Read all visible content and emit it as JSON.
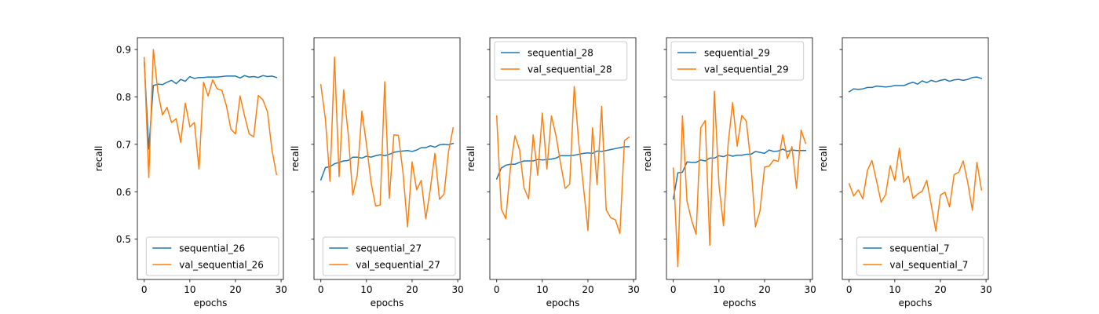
{
  "chart_data": [
    {
      "type": "line",
      "xlabel": "epochs",
      "ylabel": "recall",
      "xlim": [
        -1.5,
        30.5
      ],
      "ylim": [
        0.415,
        0.925
      ],
      "xticks": [
        0,
        10,
        20,
        30
      ],
      "yticks": [
        0.5,
        0.6,
        0.7,
        0.8,
        0.9
      ],
      "show_ytick_labels": true,
      "legend": "lower-right",
      "series": [
        {
          "name": "sequential_26",
          "color": "#1f77b4",
          "x": [
            0,
            1,
            2,
            3,
            4,
            5,
            6,
            7,
            8,
            9,
            10,
            11,
            12,
            13,
            14,
            15,
            16,
            17,
            18,
            19,
            20,
            21,
            22,
            23,
            24,
            25,
            26,
            27,
            28,
            29
          ],
          "values": [
            0.875,
            0.69,
            0.824,
            0.827,
            0.826,
            0.831,
            0.835,
            0.828,
            0.837,
            0.833,
            0.843,
            0.839,
            0.841,
            0.841,
            0.842,
            0.842,
            0.842,
            0.843,
            0.844,
            0.844,
            0.844,
            0.84,
            0.845,
            0.842,
            0.843,
            0.841,
            0.845,
            0.843,
            0.844,
            0.841
          ]
        },
        {
          "name": "val_sequential_26",
          "color": "#ff7f0e",
          "x": [
            0,
            1,
            2,
            3,
            4,
            5,
            6,
            7,
            8,
            9,
            10,
            11,
            12,
            13,
            14,
            15,
            16,
            17,
            18,
            19,
            20,
            21,
            22,
            23,
            24,
            25,
            26,
            27,
            28,
            29
          ],
          "values": [
            0.883,
            0.63,
            0.9,
            0.81,
            0.762,
            0.778,
            0.746,
            0.754,
            0.704,
            0.787,
            0.737,
            0.746,
            0.648,
            0.831,
            0.802,
            0.836,
            0.817,
            0.814,
            0.782,
            0.732,
            0.722,
            0.802,
            0.76,
            0.722,
            0.716,
            0.803,
            0.794,
            0.769,
            0.688,
            0.636
          ]
        }
      ]
    },
    {
      "type": "line",
      "xlabel": "epochs",
      "ylabel": "recall",
      "xlim": [
        -1.5,
        30.5
      ],
      "ylim": [
        0.415,
        0.925
      ],
      "xticks": [
        0,
        10,
        20,
        30
      ],
      "yticks": [
        0.5,
        0.6,
        0.7,
        0.8,
        0.9
      ],
      "show_ytick_labels": false,
      "legend": "lower-right",
      "series": [
        {
          "name": "sequential_27",
          "color": "#1f77b4",
          "x": [
            0,
            1,
            2,
            3,
            4,
            5,
            6,
            7,
            8,
            9,
            10,
            11,
            12,
            13,
            14,
            15,
            16,
            17,
            18,
            19,
            20,
            21,
            22,
            23,
            24,
            25,
            26,
            27,
            28,
            29
          ],
          "values": [
            0.625,
            0.651,
            0.653,
            0.659,
            0.662,
            0.665,
            0.666,
            0.673,
            0.673,
            0.671,
            0.675,
            0.673,
            0.676,
            0.678,
            0.676,
            0.679,
            0.683,
            0.685,
            0.686,
            0.687,
            0.685,
            0.688,
            0.693,
            0.693,
            0.697,
            0.694,
            0.699,
            0.7,
            0.699,
            0.702
          ]
        },
        {
          "name": "val_sequential_27",
          "color": "#ff7f0e",
          "x": [
            0,
            1,
            2,
            3,
            4,
            5,
            6,
            7,
            8,
            9,
            10,
            11,
            12,
            13,
            14,
            15,
            16,
            17,
            18,
            19,
            20,
            21,
            22,
            23,
            24,
            25,
            26,
            27,
            28,
            29
          ],
          "values": [
            0.826,
            0.753,
            0.622,
            0.884,
            0.632,
            0.815,
            0.721,
            0.593,
            0.636,
            0.77,
            0.7,
            0.62,
            0.57,
            0.572,
            0.832,
            0.586,
            0.72,
            0.719,
            0.641,
            0.526,
            0.663,
            0.604,
            0.624,
            0.543,
            0.606,
            0.681,
            0.584,
            0.595,
            0.686,
            0.735
          ]
        }
      ]
    },
    {
      "type": "line",
      "xlabel": "epochs",
      "ylabel": "recall",
      "xlim": [
        -1.5,
        30.5
      ],
      "ylim": [
        0.415,
        0.925
      ],
      "xticks": [
        0,
        10,
        20,
        30
      ],
      "yticks": [
        0.5,
        0.6,
        0.7,
        0.8,
        0.9
      ],
      "show_ytick_labels": false,
      "legend": "upper-left",
      "series": [
        {
          "name": "sequential_28",
          "color": "#1f77b4",
          "x": [
            0,
            1,
            2,
            3,
            4,
            5,
            6,
            7,
            8,
            9,
            10,
            11,
            12,
            13,
            14,
            15,
            16,
            17,
            18,
            19,
            20,
            21,
            22,
            23,
            24,
            25,
            26,
            27,
            28,
            29
          ],
          "values": [
            0.627,
            0.65,
            0.656,
            0.658,
            0.658,
            0.662,
            0.665,
            0.665,
            0.665,
            0.668,
            0.667,
            0.668,
            0.669,
            0.671,
            0.676,
            0.676,
            0.676,
            0.677,
            0.679,
            0.681,
            0.682,
            0.681,
            0.686,
            0.685,
            0.687,
            0.689,
            0.691,
            0.693,
            0.695,
            0.695
          ]
        },
        {
          "name": "val_sequential_28",
          "color": "#ff7f0e",
          "x": [
            0,
            1,
            2,
            3,
            4,
            5,
            6,
            7,
            8,
            9,
            10,
            11,
            12,
            13,
            14,
            15,
            16,
            17,
            18,
            19,
            20,
            21,
            22,
            23,
            24,
            25,
            26,
            27,
            28,
            29
          ],
          "values": [
            0.76,
            0.564,
            0.543,
            0.649,
            0.718,
            0.689,
            0.608,
            0.585,
            0.72,
            0.635,
            0.766,
            0.648,
            0.76,
            0.718,
            0.66,
            0.607,
            0.616,
            0.822,
            0.702,
            0.612,
            0.518,
            0.735,
            0.615,
            0.78,
            0.562,
            0.545,
            0.541,
            0.512,
            0.708,
            0.715
          ]
        }
      ]
    },
    {
      "type": "line",
      "xlabel": "epochs",
      "ylabel": "recall",
      "xlim": [
        -1.5,
        30.5
      ],
      "ylim": [
        0.415,
        0.925
      ],
      "xticks": [
        0,
        10,
        20,
        30
      ],
      "yticks": [
        0.5,
        0.6,
        0.7,
        0.8,
        0.9
      ],
      "show_ytick_labels": false,
      "legend": "upper-left",
      "series": [
        {
          "name": "sequential_29",
          "color": "#1f77b4",
          "x": [
            0,
            1,
            2,
            3,
            4,
            5,
            6,
            7,
            8,
            9,
            10,
            11,
            12,
            13,
            14,
            15,
            16,
            17,
            18,
            19,
            20,
            21,
            22,
            23,
            24,
            25,
            26,
            27,
            28,
            29
          ],
          "values": [
            0.585,
            0.64,
            0.641,
            0.663,
            0.662,
            0.662,
            0.667,
            0.665,
            0.671,
            0.671,
            0.676,
            0.674,
            0.678,
            0.675,
            0.677,
            0.677,
            0.679,
            0.679,
            0.685,
            0.683,
            0.681,
            0.688,
            0.685,
            0.686,
            0.69,
            0.685,
            0.688,
            0.687,
            0.687,
            0.687
          ]
        },
        {
          "name": "val_sequential_29",
          "color": "#ff7f0e",
          "x": [
            0,
            1,
            2,
            3,
            4,
            5,
            6,
            7,
            8,
            9,
            10,
            11,
            12,
            13,
            14,
            15,
            16,
            17,
            18,
            19,
            20,
            21,
            22,
            23,
            24,
            25,
            26,
            27,
            28,
            29
          ],
          "values": [
            0.65,
            0.442,
            0.76,
            0.58,
            0.54,
            0.51,
            0.735,
            0.75,
            0.487,
            0.812,
            0.615,
            0.528,
            0.699,
            0.788,
            0.696,
            0.761,
            0.749,
            0.66,
            0.526,
            0.56,
            0.652,
            0.654,
            0.667,
            0.664,
            0.72,
            0.67,
            0.695,
            0.607,
            0.73,
            0.702
          ]
        }
      ]
    },
    {
      "type": "line",
      "xlabel": "epochs",
      "ylabel": "recall",
      "xlim": [
        -1.5,
        30.5
      ],
      "ylim": [
        0.415,
        0.925
      ],
      "xticks": [
        0,
        10,
        20,
        30
      ],
      "yticks": [
        0.5,
        0.6,
        0.7,
        0.8,
        0.9
      ],
      "show_ytick_labels": false,
      "legend": "lower-right",
      "series": [
        {
          "name": "sequential_7",
          "color": "#1f77b4",
          "x": [
            0,
            1,
            2,
            3,
            4,
            5,
            6,
            7,
            8,
            9,
            10,
            11,
            12,
            13,
            14,
            15,
            16,
            17,
            18,
            19,
            20,
            21,
            22,
            23,
            24,
            25,
            26,
            27,
            28,
            29
          ],
          "values": [
            0.811,
            0.817,
            0.816,
            0.817,
            0.82,
            0.82,
            0.823,
            0.822,
            0.821,
            0.822,
            0.824,
            0.824,
            0.824,
            0.828,
            0.831,
            0.827,
            0.834,
            0.83,
            0.835,
            0.832,
            0.835,
            0.837,
            0.833,
            0.836,
            0.837,
            0.835,
            0.837,
            0.841,
            0.842,
            0.839
          ]
        },
        {
          "name": "val_sequential_7",
          "color": "#ff7f0e",
          "x": [
            0,
            1,
            2,
            3,
            4,
            5,
            6,
            7,
            8,
            9,
            10,
            11,
            12,
            13,
            14,
            15,
            16,
            17,
            18,
            19,
            20,
            21,
            22,
            23,
            24,
            25,
            26,
            27,
            28,
            29
          ],
          "values": [
            0.617,
            0.591,
            0.604,
            0.585,
            0.645,
            0.666,
            0.623,
            0.578,
            0.594,
            0.655,
            0.624,
            0.692,
            0.62,
            0.633,
            0.586,
            0.595,
            0.601,
            0.624,
            0.572,
            0.517,
            0.593,
            0.599,
            0.568,
            0.636,
            0.641,
            0.665,
            0.619,
            0.561,
            0.662,
            0.604
          ]
        }
      ]
    }
  ]
}
